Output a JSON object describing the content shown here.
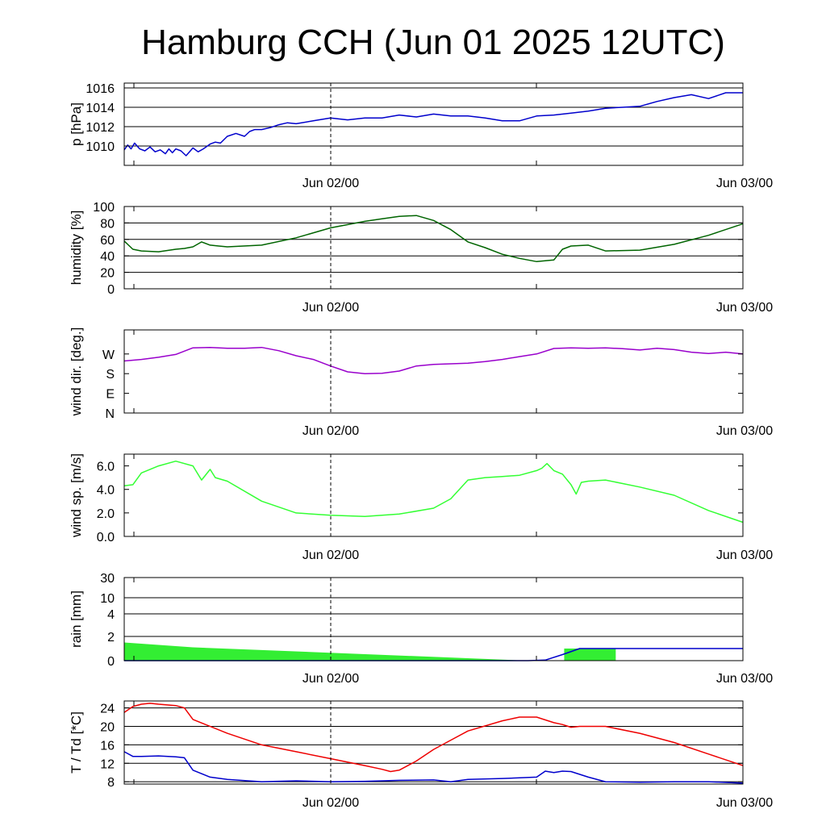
{
  "title": "Hamburg CCH (Jun 01 2025 12UTC)",
  "x_ticks": [
    "Jun 02/00",
    "Jun 03/00"
  ],
  "chart_data": [
    {
      "type": "line",
      "ylabel": "p [hPa]",
      "ylim": [
        1008,
        1016.5
      ],
      "yticks": [
        1010,
        1012,
        1014,
        1016
      ],
      "ytick_labels": [
        "1010",
        "1012",
        "1014",
        "1016"
      ],
      "grid": true,
      "x_range_hours": [
        0,
        36
      ],
      "series": [
        {
          "color": "#0000cc",
          "x": [
            0,
            0.2,
            0.4,
            0.6,
            0.9,
            1.2,
            1.5,
            1.8,
            2.1,
            2.4,
            2.6,
            2.8,
            3.0,
            3.3,
            3.6,
            4,
            4.3,
            4.6,
            5,
            5.3,
            5.6,
            6,
            6.5,
            7,
            7.3,
            7.6,
            8,
            8.5,
            9,
            9.5,
            10,
            11,
            12,
            13,
            14,
            15,
            16,
            17,
            18,
            19,
            20,
            21,
            22,
            23,
            24,
            25,
            26,
            27,
            28,
            29,
            30,
            31,
            32,
            33,
            34,
            35,
            36
          ],
          "y": [
            1009.6,
            1010.1,
            1009.7,
            1010.3,
            1009.7,
            1009.5,
            1009.9,
            1009.4,
            1009.6,
            1009.2,
            1009.7,
            1009.3,
            1009.7,
            1009.5,
            1009.0,
            1009.8,
            1009.4,
            1009.7,
            1010.2,
            1010.4,
            1010.3,
            1011.0,
            1011.3,
            1011.0,
            1011.5,
            1011.7,
            1011.7,
            1011.9,
            1012.2,
            1012.4,
            1012.3,
            1012.6,
            1012.9,
            1012.7,
            1012.9,
            1012.9,
            1013.2,
            1013.0,
            1013.3,
            1013.1,
            1013.1,
            1012.9,
            1012.6,
            1012.6,
            1013.1,
            1013.2,
            1013.4,
            1013.6,
            1013.9,
            1014.0,
            1014.1,
            1014.6,
            1015.0,
            1015.3,
            1014.9,
            1015.5,
            1015.5
          ]
        }
      ]
    },
    {
      "type": "line",
      "ylabel": "humidity [%]",
      "ylim": [
        0,
        100
      ],
      "yticks": [
        0,
        20,
        40,
        60,
        80,
        100
      ],
      "ytick_labels": [
        "0",
        "20",
        "40",
        "60",
        "80",
        "100"
      ],
      "grid": true,
      "x_range_hours": [
        0,
        36
      ],
      "series": [
        {
          "color": "#006400",
          "x": [
            0,
            0.5,
            1,
            2,
            3,
            3.5,
            4,
            4.5,
            5,
            5.5,
            6,
            8,
            10,
            12,
            14,
            15,
            16,
            17,
            18,
            19,
            20,
            21,
            22,
            23,
            24,
            24.5,
            25,
            25.5,
            26,
            27,
            28,
            30,
            32,
            34,
            36
          ],
          "y": [
            58,
            48,
            46,
            45,
            48,
            49,
            51,
            57,
            53,
            52,
            51,
            53,
            62,
            74,
            82,
            85,
            88,
            89,
            83,
            72,
            57,
            50,
            42,
            37,
            33,
            34,
            35,
            48,
            52,
            53,
            46,
            47,
            54,
            65,
            79
          ]
        }
      ]
    },
    {
      "type": "line",
      "ylabel": "wind dir. [deg.]",
      "ylim": [
        0,
        380
      ],
      "yticks": [
        0,
        90,
        180,
        270
      ],
      "ytick_labels": [
        "N",
        "E",
        "S",
        "W"
      ],
      "grid": false,
      "x_range_hours": [
        0,
        36
      ],
      "series": [
        {
          "color": "#9900cc",
          "x": [
            0,
            1,
            2,
            3,
            4,
            5,
            6,
            7,
            8,
            9,
            10,
            11,
            12,
            13,
            14,
            15,
            16,
            17,
            18,
            19,
            20,
            21,
            22,
            23,
            24,
            25,
            26,
            27,
            28,
            29,
            30,
            31,
            32,
            33,
            34,
            35,
            36
          ],
          "y": [
            238,
            245,
            255,
            268,
            298,
            300,
            296,
            296,
            300,
            285,
            262,
            245,
            215,
            188,
            180,
            182,
            192,
            215,
            222,
            225,
            228,
            235,
            245,
            258,
            270,
            295,
            298,
            296,
            298,
            294,
            288,
            296,
            290,
            278,
            272,
            278,
            270
          ]
        }
      ]
    },
    {
      "type": "line",
      "ylabel": "wind sp. [m/s]",
      "ylim": [
        0,
        7.0
      ],
      "yticks": [
        0,
        2,
        4,
        6
      ],
      "ytick_labels": [
        "0.0",
        "2.0",
        "4.0",
        "6.0"
      ],
      "grid": false,
      "x_range_hours": [
        0,
        36
      ],
      "series": [
        {
          "color": "#33ff33",
          "x": [
            0,
            0.5,
            1,
            2,
            3,
            4,
            4.5,
            5,
            5.3,
            6,
            8,
            10,
            12,
            14,
            16,
            18,
            19,
            20,
            21,
            22,
            23,
            24,
            24.3,
            24.6,
            25,
            25.5,
            26,
            26.3,
            26.6,
            27,
            28,
            30,
            32,
            34,
            36
          ],
          "y": [
            4.3,
            4.4,
            5.4,
            6.0,
            6.4,
            6.0,
            4.8,
            5.7,
            5.0,
            4.7,
            3.0,
            2.0,
            1.8,
            1.7,
            1.9,
            2.4,
            3.2,
            4.8,
            5.0,
            5.1,
            5.2,
            5.6,
            5.8,
            6.2,
            5.6,
            5.3,
            4.4,
            3.6,
            4.6,
            4.7,
            4.8,
            4.2,
            3.5,
            2.2,
            1.2
          ]
        }
      ]
    },
    {
      "type": "area",
      "ylabel": "rain [mm]",
      "ylim": [
        0,
        30
      ],
      "yticks": [
        0,
        2,
        4,
        10,
        30
      ],
      "ytick_labels": [
        "0",
        "2",
        "4",
        "10",
        "30"
      ],
      "grid": true,
      "x_range_hours": [
        0,
        36
      ],
      "series": [
        {
          "color": "#33ee33",
          "kind": "area",
          "x": [
            0,
            4,
            23.5
          ],
          "y_top": [
            1.5,
            1.1,
            0
          ],
          "y_bottom": [
            0,
            0,
            0
          ]
        },
        {
          "color": "#33ee33",
          "kind": "bar",
          "x_start": 25.6,
          "x_end": 28.6,
          "value": 1.0
        },
        {
          "color": "#0000cc",
          "kind": "line",
          "x": [
            0,
            23.5,
            24.5,
            25.5,
            26.5,
            36
          ],
          "y": [
            0,
            0,
            0.05,
            0.5,
            1.0,
            1.0
          ]
        }
      ]
    },
    {
      "type": "line",
      "ylabel": "T / Td [*C]",
      "ylim": [
        7.5,
        25.5
      ],
      "yticks": [
        8,
        12,
        16,
        20,
        24
      ],
      "ytick_labels": [
        "8",
        "12",
        "16",
        "20",
        "24"
      ],
      "grid": true,
      "x_range_hours": [
        0,
        36
      ],
      "series": [
        {
          "color": "#ee0000",
          "x": [
            0,
            0.5,
            1,
            1.5,
            2,
            3,
            3.5,
            4,
            6,
            8,
            10,
            12,
            14,
            15,
            15.5,
            16,
            17,
            18,
            19,
            20,
            22,
            23,
            24,
            25,
            25.5,
            26,
            26.5,
            27,
            28,
            30,
            32,
            34,
            36
          ],
          "y": [
            23.0,
            24.3,
            24.8,
            25.0,
            24.8,
            24.5,
            24.0,
            21.5,
            18.5,
            16.0,
            14.5,
            13.0,
            11.5,
            10.7,
            10.2,
            10.5,
            12.5,
            15.0,
            17.0,
            19.0,
            21.2,
            22.0,
            22.0,
            20.8,
            20.4,
            19.8,
            20.0,
            20.0,
            20.0,
            18.5,
            16.5,
            14.0,
            11.5
          ]
        },
        {
          "color": "#0000cc",
          "x": [
            0,
            0.5,
            1,
            2,
            3,
            3.5,
            4,
            5,
            6,
            8,
            10,
            12,
            14,
            16,
            18,
            19,
            20,
            22,
            24,
            24.5,
            25,
            25.5,
            26,
            27,
            28,
            30,
            32,
            34,
            36
          ],
          "y": [
            14.5,
            13.5,
            13.5,
            13.6,
            13.4,
            13.2,
            10.5,
            9.0,
            8.5,
            8.0,
            8.2,
            8.0,
            8.1,
            8.3,
            8.4,
            8.0,
            8.5,
            8.7,
            9.0,
            10.3,
            10.0,
            10.3,
            10.2,
            9.0,
            8.0,
            7.9,
            8.0,
            8.0,
            7.7
          ]
        }
      ]
    }
  ]
}
